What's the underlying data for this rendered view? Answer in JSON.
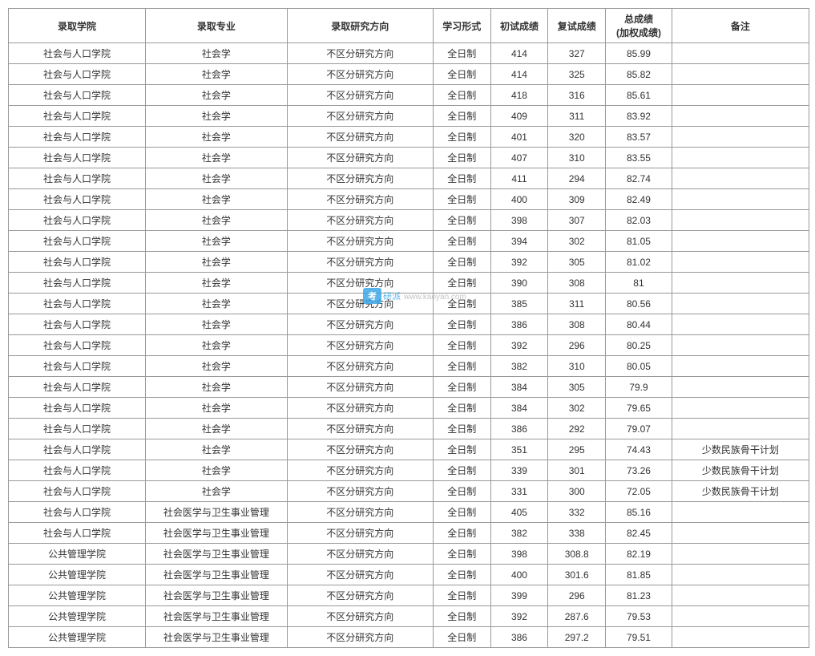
{
  "headers": {
    "college": "录取学院",
    "major": "录取专业",
    "direction": "录取研究方向",
    "form": "学习形式",
    "prelim": "初试成绩",
    "retest": "复试成绩",
    "total_line1": "总成绩",
    "total_line2": "(加权成绩)",
    "remark": "备注"
  },
  "watermark": {
    "box": "考",
    "brand": "研派",
    "url": "www.kaoyan.com"
  },
  "rows": [
    {
      "college": "社会与人口学院",
      "major": "社会学",
      "direction": "不区分研究方向",
      "form": "全日制",
      "prelim": "414",
      "retest": "327",
      "total": "85.99",
      "remark": ""
    },
    {
      "college": "社会与人口学院",
      "major": "社会学",
      "direction": "不区分研究方向",
      "form": "全日制",
      "prelim": "414",
      "retest": "325",
      "total": "85.82",
      "remark": ""
    },
    {
      "college": "社会与人口学院",
      "major": "社会学",
      "direction": "不区分研究方向",
      "form": "全日制",
      "prelim": "418",
      "retest": "316",
      "total": "85.61",
      "remark": ""
    },
    {
      "college": "社会与人口学院",
      "major": "社会学",
      "direction": "不区分研究方向",
      "form": "全日制",
      "prelim": "409",
      "retest": "311",
      "total": "83.92",
      "remark": ""
    },
    {
      "college": "社会与人口学院",
      "major": "社会学",
      "direction": "不区分研究方向",
      "form": "全日制",
      "prelim": "401",
      "retest": "320",
      "total": "83.57",
      "remark": ""
    },
    {
      "college": "社会与人口学院",
      "major": "社会学",
      "direction": "不区分研究方向",
      "form": "全日制",
      "prelim": "407",
      "retest": "310",
      "total": "83.55",
      "remark": ""
    },
    {
      "college": "社会与人口学院",
      "major": "社会学",
      "direction": "不区分研究方向",
      "form": "全日制",
      "prelim": "411",
      "retest": "294",
      "total": "82.74",
      "remark": ""
    },
    {
      "college": "社会与人口学院",
      "major": "社会学",
      "direction": "不区分研究方向",
      "form": "全日制",
      "prelim": "400",
      "retest": "309",
      "total": "82.49",
      "remark": ""
    },
    {
      "college": "社会与人口学院",
      "major": "社会学",
      "direction": "不区分研究方向",
      "form": "全日制",
      "prelim": "398",
      "retest": "307",
      "total": "82.03",
      "remark": ""
    },
    {
      "college": "社会与人口学院",
      "major": "社会学",
      "direction": "不区分研究方向",
      "form": "全日制",
      "prelim": "394",
      "retest": "302",
      "total": "81.05",
      "remark": ""
    },
    {
      "college": "社会与人口学院",
      "major": "社会学",
      "direction": "不区分研究方向",
      "form": "全日制",
      "prelim": "392",
      "retest": "305",
      "total": "81.02",
      "remark": ""
    },
    {
      "college": "社会与人口学院",
      "major": "社会学",
      "direction": "不区分研究方向",
      "form": "全日制",
      "prelim": "390",
      "retest": "308",
      "total": "81",
      "remark": ""
    },
    {
      "college": "社会与人口学院",
      "major": "社会学",
      "direction": "不区分研究方向",
      "form": "全日制",
      "prelim": "385",
      "retest": "311",
      "total": "80.56",
      "remark": ""
    },
    {
      "college": "社会与人口学院",
      "major": "社会学",
      "direction": "不区分研究方向",
      "form": "全日制",
      "prelim": "386",
      "retest": "308",
      "total": "80.44",
      "remark": ""
    },
    {
      "college": "社会与人口学院",
      "major": "社会学",
      "direction": "不区分研究方向",
      "form": "全日制",
      "prelim": "392",
      "retest": "296",
      "total": "80.25",
      "remark": ""
    },
    {
      "college": "社会与人口学院",
      "major": "社会学",
      "direction": "不区分研究方向",
      "form": "全日制",
      "prelim": "382",
      "retest": "310",
      "total": "80.05",
      "remark": ""
    },
    {
      "college": "社会与人口学院",
      "major": "社会学",
      "direction": "不区分研究方向",
      "form": "全日制",
      "prelim": "384",
      "retest": "305",
      "total": "79.9",
      "remark": ""
    },
    {
      "college": "社会与人口学院",
      "major": "社会学",
      "direction": "不区分研究方向",
      "form": "全日制",
      "prelim": "384",
      "retest": "302",
      "total": "79.65",
      "remark": ""
    },
    {
      "college": "社会与人口学院",
      "major": "社会学",
      "direction": "不区分研究方向",
      "form": "全日制",
      "prelim": "386",
      "retest": "292",
      "total": "79.07",
      "remark": ""
    },
    {
      "college": "社会与人口学院",
      "major": "社会学",
      "direction": "不区分研究方向",
      "form": "全日制",
      "prelim": "351",
      "retest": "295",
      "total": "74.43",
      "remark": "少数民族骨干计划"
    },
    {
      "college": "社会与人口学院",
      "major": "社会学",
      "direction": "不区分研究方向",
      "form": "全日制",
      "prelim": "339",
      "retest": "301",
      "total": "73.26",
      "remark": "少数民族骨干计划"
    },
    {
      "college": "社会与人口学院",
      "major": "社会学",
      "direction": "不区分研究方向",
      "form": "全日制",
      "prelim": "331",
      "retest": "300",
      "total": "72.05",
      "remark": "少数民族骨干计划"
    },
    {
      "college": "社会与人口学院",
      "major": "社会医学与卫生事业管理",
      "direction": "不区分研究方向",
      "form": "全日制",
      "prelim": "405",
      "retest": "332",
      "total": "85.16",
      "remark": ""
    },
    {
      "college": "社会与人口学院",
      "major": "社会医学与卫生事业管理",
      "direction": "不区分研究方向",
      "form": "全日制",
      "prelim": "382",
      "retest": "338",
      "total": "82.45",
      "remark": ""
    },
    {
      "college": "公共管理学院",
      "major": "社会医学与卫生事业管理",
      "direction": "不区分研究方向",
      "form": "全日制",
      "prelim": "398",
      "retest": "308.8",
      "total": "82.19",
      "remark": ""
    },
    {
      "college": "公共管理学院",
      "major": "社会医学与卫生事业管理",
      "direction": "不区分研究方向",
      "form": "全日制",
      "prelim": "400",
      "retest": "301.6",
      "total": "81.85",
      "remark": ""
    },
    {
      "college": "公共管理学院",
      "major": "社会医学与卫生事业管理",
      "direction": "不区分研究方向",
      "form": "全日制",
      "prelim": "399",
      "retest": "296",
      "total": "81.23",
      "remark": ""
    },
    {
      "college": "公共管理学院",
      "major": "社会医学与卫生事业管理",
      "direction": "不区分研究方向",
      "form": "全日制",
      "prelim": "392",
      "retest": "287.6",
      "total": "79.53",
      "remark": ""
    },
    {
      "college": "公共管理学院",
      "major": "社会医学与卫生事业管理",
      "direction": "不区分研究方向",
      "form": "全日制",
      "prelim": "386",
      "retest": "297.2",
      "total": "79.51",
      "remark": ""
    }
  ]
}
